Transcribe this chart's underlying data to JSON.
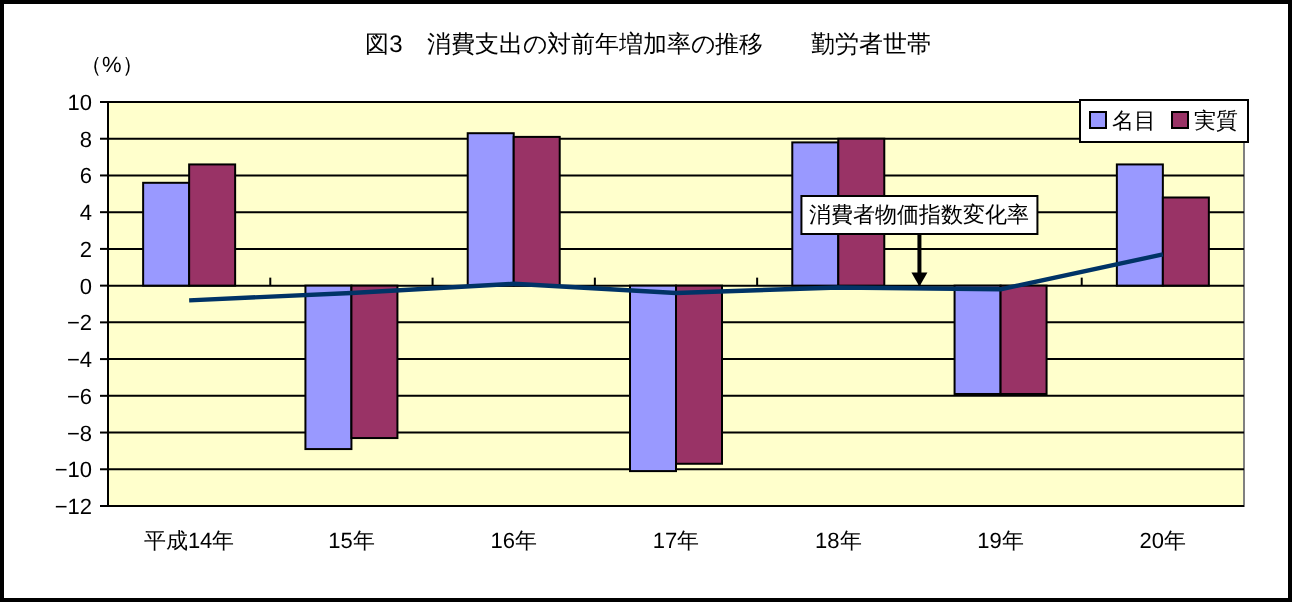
{
  "chart_data": {
    "type": "bar",
    "title": "図3　消費支出の対前年増加率の推移　　勤労者世帯",
    "ylabel": "（%）",
    "categories": [
      "平成14年",
      "15年",
      "16年",
      "17年",
      "18年",
      "19年",
      "20年"
    ],
    "series": [
      {
        "name": "名目",
        "color": "#9999ff",
        "values": [
          5.6,
          -8.9,
          8.3,
          -10.1,
          7.8,
          -5.9,
          6.6
        ]
      },
      {
        "name": "実質",
        "color": "#993366",
        "values": [
          6.6,
          -8.3,
          8.1,
          -9.7,
          8.0,
          -5.9,
          4.8
        ]
      },
      {
        "name": "消費者物価指数変化率",
        "type": "line",
        "color": "#003366",
        "values": [
          -0.8,
          -0.4,
          0.1,
          -0.4,
          -0.1,
          -0.2,
          1.7
        ]
      }
    ],
    "ylim": [
      -12,
      10
    ],
    "yticks": [
      -12,
      -10,
      -8,
      -6,
      -4,
      -2,
      0,
      2,
      4,
      6,
      8,
      10
    ],
    "grid": "y",
    "legend": "top right"
  }
}
